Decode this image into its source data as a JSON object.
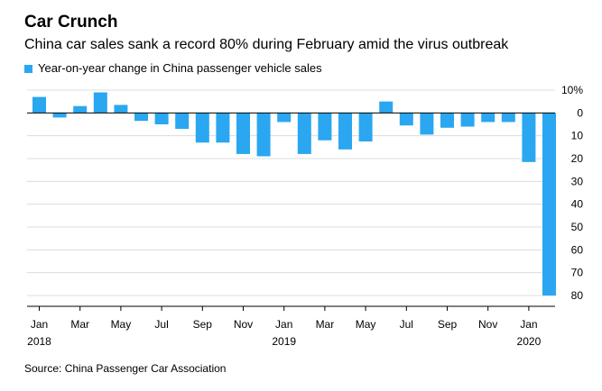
{
  "title": "Car Crunch",
  "subtitle": "China car sales sank a record 80% during February amid the virus outbreak",
  "source": "Source: China Passenger Car Association",
  "colors": {
    "bar": "#2aa7f0",
    "grid": "#dcdcdc",
    "zero_line": "#000000"
  },
  "chart_data": {
    "type": "bar",
    "title": "Car Crunch",
    "subtitle": "China car sales sank a record 80% during February amid the virus outbreak",
    "xlabel": "",
    "ylabel": "",
    "ylim": [
      -80,
      10
    ],
    "grid": true,
    "legend_position": "top-left",
    "y_ticks": [
      10,
      0,
      -10,
      -20,
      -30,
      -40,
      -50,
      -60,
      -70,
      -80
    ],
    "y_tick_labels": [
      "10%",
      "0",
      "10",
      "20",
      "30",
      "40",
      "50",
      "60",
      "70",
      "80"
    ],
    "categories": [
      "Jan 2018",
      "Feb 2018",
      "Mar 2018",
      "Apr 2018",
      "May 2018",
      "Jun 2018",
      "Jul 2018",
      "Aug 2018",
      "Sep 2018",
      "Oct 2018",
      "Nov 2018",
      "Dec 2018",
      "Jan 2019",
      "Feb 2019",
      "Mar 2019",
      "Apr 2019",
      "May 2019",
      "Jun 2019",
      "Jul 2019",
      "Aug 2019",
      "Sep 2019",
      "Oct 2019",
      "Nov 2019",
      "Dec 2019",
      "Jan 2020",
      "Feb 2020"
    ],
    "x_tick_labels": [
      "Jan",
      "",
      "Mar",
      "",
      "May",
      "",
      "Jul",
      "",
      "Sep",
      "",
      "Nov",
      "",
      "Jan",
      "",
      "Mar",
      "",
      "May",
      "",
      "Jul",
      "",
      "Sep",
      "",
      "Nov",
      "",
      "Jan",
      ""
    ],
    "x_year_labels": [
      {
        "index": 0,
        "label": "2018"
      },
      {
        "index": 12,
        "label": "2019"
      },
      {
        "index": 24,
        "label": "2020"
      }
    ],
    "series": [
      {
        "name": "Year-on-year change in China passenger vehicle sales",
        "values": [
          7,
          -2,
          3,
          9,
          3.5,
          -3.5,
          -5,
          -7,
          -13,
          -13,
          -18,
          -19,
          -4,
          -18,
          -12,
          -16,
          -12.5,
          5,
          -5.5,
          -9.5,
          -6.5,
          -6,
          -4,
          -4,
          -21.5,
          -80
        ]
      }
    ]
  }
}
